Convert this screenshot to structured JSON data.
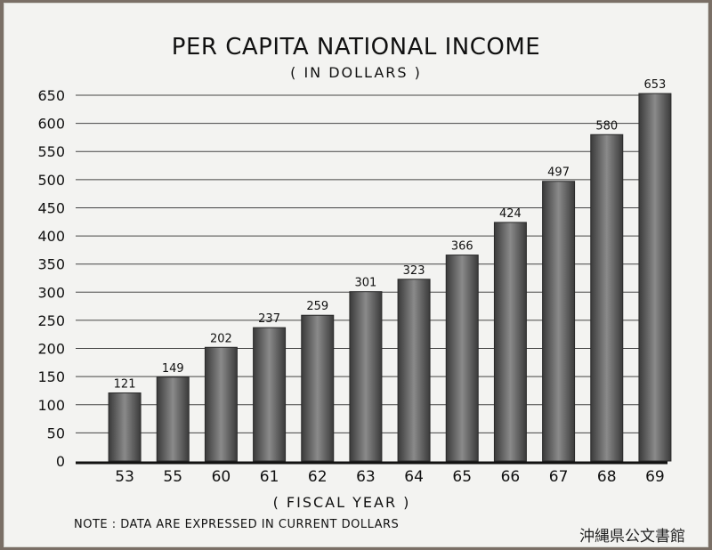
{
  "chart_data": {
    "type": "bar",
    "title": "PER CAPITA NATIONAL INCOME",
    "subtitle": "( IN DOLLARS )",
    "xlabel": "( FISCAL YEAR )",
    "ylabel": "",
    "categories": [
      "53",
      "55",
      "60",
      "61",
      "62",
      "63",
      "64",
      "65",
      "66",
      "67",
      "68",
      "69"
    ],
    "values": [
      121,
      149,
      202,
      237,
      259,
      301,
      323,
      366,
      424,
      497,
      580,
      653
    ],
    "data_labels": [
      "121",
      "149",
      "202",
      "237",
      "259",
      "301",
      "323",
      "366",
      "424",
      "497",
      "580",
      "653"
    ],
    "ylim": [
      0,
      650
    ],
    "yticks": [
      0,
      50,
      100,
      150,
      200,
      250,
      300,
      350,
      400,
      450,
      500,
      550,
      600,
      650
    ],
    "grid": true,
    "legend": "none",
    "note": "NOTE : DATA ARE EXPRESSED IN CURRENT DOLLARS"
  },
  "archive_mark": "沖縄県公文書館",
  "colors": {
    "bar_dark": "#3a3a3a",
    "bar_light": "#8a8a8a",
    "gridline": "#444444",
    "paper": "#f3f3f1"
  }
}
